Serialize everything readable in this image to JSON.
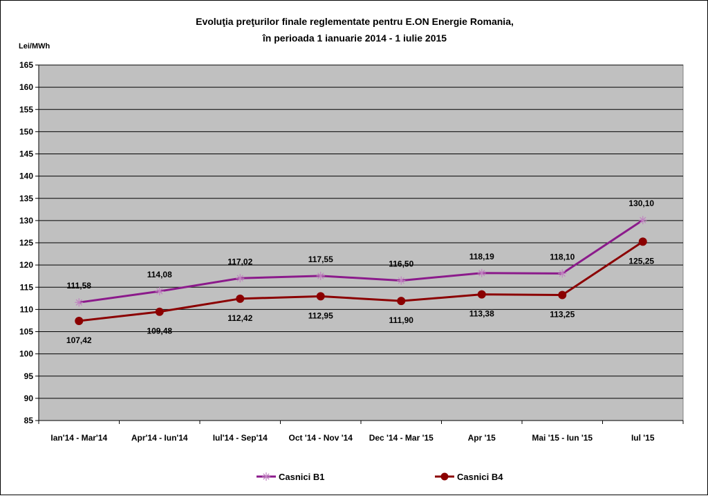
{
  "chart_data": {
    "type": "line",
    "title_line1": "Evoluţia preţurilor finale reglementate pentru E.ON Energie Romania,",
    "title_line2": "în perioada  1 ianuarie 2014 -  1 iulie 2015",
    "ylabel": "Lei/MWh",
    "ylim": [
      85,
      165
    ],
    "y_ticks": [
      "165",
      "160",
      "155",
      "150",
      "145",
      "140",
      "135",
      "130",
      "125",
      "120",
      "115",
      "110",
      "105",
      "100",
      "95",
      "90",
      "85"
    ],
    "grid": true,
    "legend_position": "bottom",
    "categories": [
      "Ian'14 - Mar'14",
      "Apr'14 - Iun'14",
      "Iul'14 - Sep'14",
      "Oct '14 - Nov '14",
      "Dec '14 - Mar '15",
      "Apr '15",
      "Mai '15 - Iun '15",
      "Iul '15"
    ],
    "series": [
      {
        "name": "Casnici B1",
        "color": "#8b1a8b",
        "marker": "star",
        "values": [
          111.58,
          114.08,
          117.02,
          117.55,
          116.5,
          118.19,
          118.1,
          130.1
        ],
        "labels": [
          "111,58",
          "114,08",
          "117,02",
          "117,55",
          "116,50",
          "118,19",
          "118,10",
          "130,10"
        ]
      },
      {
        "name": "Casnici B4",
        "color": "#8b0000",
        "marker": "circle",
        "values": [
          107.42,
          109.48,
          112.42,
          112.95,
          111.9,
          113.38,
          113.25,
          125.25
        ],
        "labels": [
          "107,42",
          "109,48",
          "112,42",
          "112,95",
          "111,90",
          "113,38",
          "113,25",
          "125,25"
        ]
      }
    ],
    "plot_bg": "#c0c0c0"
  }
}
